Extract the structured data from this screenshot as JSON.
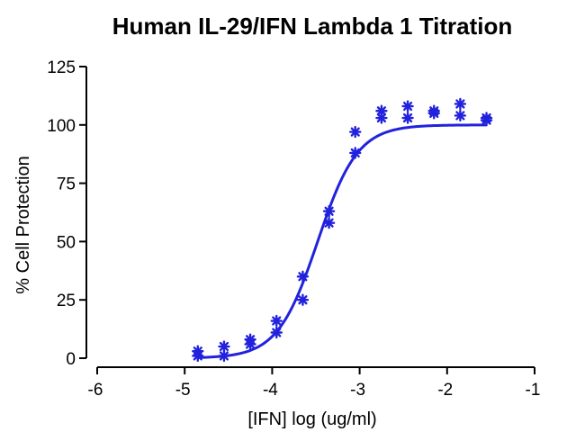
{
  "chart_data": {
    "type": "scatter",
    "title": "Human IL-29/IFN Lambda 1 Titration",
    "xlabel": "[IFN] log (ug/ml)",
    "ylabel": "% Cell Protection",
    "xlim": [
      -6,
      -1
    ],
    "ylim": [
      0,
      125
    ],
    "xticks": [
      -6,
      -5,
      -4,
      -3,
      -2,
      -1
    ],
    "yticks": [
      0,
      25,
      50,
      75,
      100,
      125
    ],
    "grid": false,
    "legend": "none",
    "series": [
      {
        "color": "#2222dd",
        "marker": "asterisk",
        "points": [
          {
            "x": -4.85,
            "y": 3
          },
          {
            "x": -4.85,
            "y": 1
          },
          {
            "x": -4.55,
            "y": 5
          },
          {
            "x": -4.55,
            "y": 1
          },
          {
            "x": -4.25,
            "y": 8
          },
          {
            "x": -4.25,
            "y": 6
          },
          {
            "x": -3.95,
            "y": 16
          },
          {
            "x": -3.95,
            "y": 11
          },
          {
            "x": -3.65,
            "y": 35
          },
          {
            "x": -3.65,
            "y": 25
          },
          {
            "x": -3.35,
            "y": 63
          },
          {
            "x": -3.35,
            "y": 58
          },
          {
            "x": -3.05,
            "y": 97
          },
          {
            "x": -3.05,
            "y": 88
          },
          {
            "x": -2.75,
            "y": 106
          },
          {
            "x": -2.75,
            "y": 103
          },
          {
            "x": -2.45,
            "y": 108
          },
          {
            "x": -2.45,
            "y": 103
          },
          {
            "x": -2.15,
            "y": 106
          },
          {
            "x": -2.15,
            "y": 105
          },
          {
            "x": -1.85,
            "y": 109
          },
          {
            "x": -1.85,
            "y": 104
          },
          {
            "x": -1.55,
            "y": 103
          },
          {
            "x": -1.55,
            "y": 102
          }
        ]
      }
    ],
    "fit_curve": {
      "type": "sigmoid",
      "color": "#2222dd",
      "x_range": [
        -4.85,
        -1.55
      ],
      "bottom": 0,
      "top": 100,
      "log_ec50": -3.48,
      "hill_slope": 1.9
    }
  }
}
